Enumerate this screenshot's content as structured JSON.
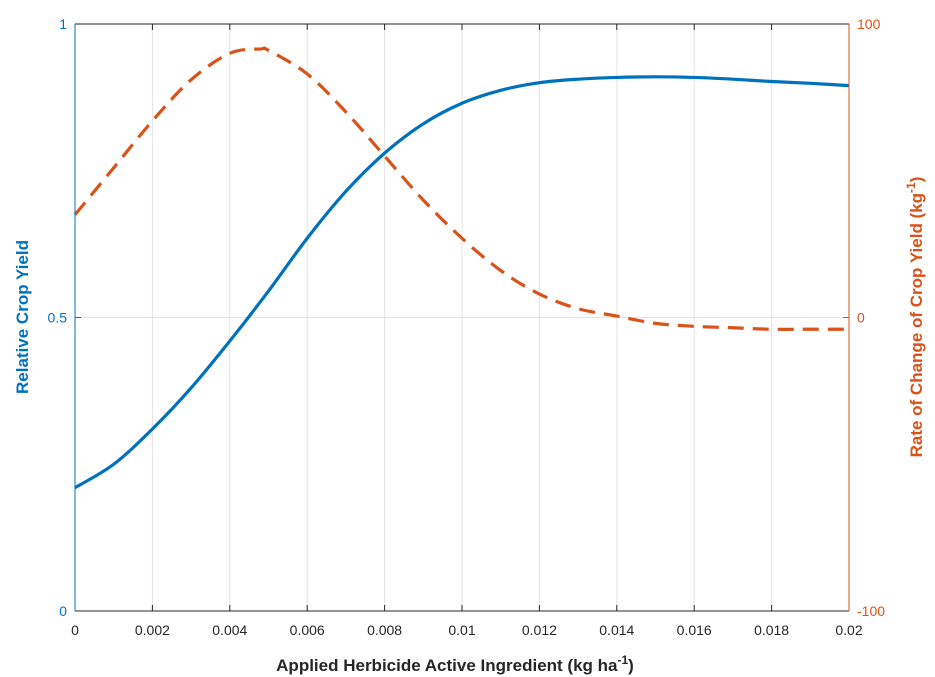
{
  "chart_data": {
    "type": "line",
    "xlabel": "Applied Herbicide Active Ingredient (kg ha",
    "xlabel_sup": "-1",
    "xlabel_end": ")",
    "ylabel_left": "Relative Crop Yield",
    "ylabel_right": "Rate of Change of Crop Yield (kg",
    "ylabel_right_sup": "-1",
    "ylabel_right_end": ")",
    "xlim": [
      0,
      0.02
    ],
    "ylim_left": [
      0,
      1
    ],
    "ylim_right": [
      -100,
      100
    ],
    "x_ticks": [
      "0",
      "0.002",
      "0.004",
      "0.006",
      "0.008",
      "0.01",
      "0.012",
      "0.014",
      "0.016",
      "0.018",
      "0.02"
    ],
    "y_left_ticks": [
      "0",
      "0.5",
      "1"
    ],
    "y_right_ticks": [
      "-100",
      "0",
      "100"
    ],
    "grid": true,
    "colors": {
      "left_axis": "#0072BD",
      "right_axis": "#D95319",
      "box": "#262626",
      "grid": "#e3e3e3"
    },
    "series": [
      {
        "axis": "left",
        "style": "solid",
        "color": "#0072BD",
        "x": [
          0,
          0.001,
          0.002,
          0.003,
          0.004,
          0.005,
          0.006,
          0.007,
          0.008,
          0.009,
          0.01,
          0.011,
          0.012,
          0.013,
          0.014,
          0.015,
          0.016,
          0.017,
          0.018,
          0.019,
          0.02
        ],
        "values": [
          0.21,
          0.25,
          0.31,
          0.38,
          0.46,
          0.545,
          0.635,
          0.715,
          0.78,
          0.83,
          0.865,
          0.887,
          0.9,
          0.906,
          0.909,
          0.91,
          0.909,
          0.906,
          0.902,
          0.899,
          0.895
        ]
      },
      {
        "axis": "right",
        "style": "dashed",
        "color": "#D95319",
        "x": [
          0,
          0.001,
          0.002,
          0.003,
          0.004,
          0.0048,
          0.005,
          0.006,
          0.007,
          0.008,
          0.009,
          0.01,
          0.011,
          0.012,
          0.013,
          0.014,
          0.015,
          0.016,
          0.017,
          0.018,
          0.019,
          0.02
        ],
        "values": [
          35,
          51,
          67,
          81,
          90,
          91.5,
          91,
          83,
          70,
          55,
          40,
          27,
          16,
          8,
          3,
          0.5,
          -2,
          -3,
          -3.5,
          -4,
          -4,
          -4
        ]
      }
    ]
  }
}
